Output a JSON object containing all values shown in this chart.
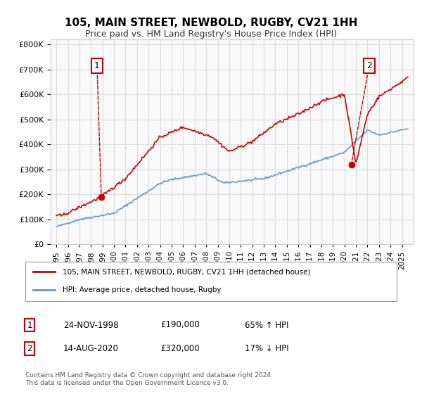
{
  "title": "105, MAIN STREET, NEWBOLD, RUGBY, CV21 1HH",
  "subtitle": "Price paid vs. HM Land Registry's House Price Index (HPI)",
  "legend_line1": "105, MAIN STREET, NEWBOLD, RUGBY, CV21 1HH (detached house)",
  "legend_line2": "HPI: Average price, detached house, Rugby",
  "footnote": "Contains HM Land Registry data © Crown copyright and database right 2024.\nThis data is licensed under the Open Government Licence v3.0.",
  "sale1_label": "1",
  "sale1_date": "24-NOV-1998",
  "sale1_price": "£190,000",
  "sale1_hpi": "65% ↑ HPI",
  "sale2_label": "2",
  "sale2_date": "14-AUG-2020",
  "sale2_price": "£320,000",
  "sale2_hpi": "17% ↓ HPI",
  "sale1_x": 1998.9,
  "sale1_y": 190000,
  "sale2_x": 2020.6,
  "sale2_y": 320000,
  "hpi_color": "#6699cc",
  "price_color": "#cc0000",
  "marker_color": "#cc0000",
  "background_color": "#f9f9f9",
  "ylim": [
    0,
    820000
  ],
  "xlim_left": 1994.5,
  "xlim_right": 2026.0
}
